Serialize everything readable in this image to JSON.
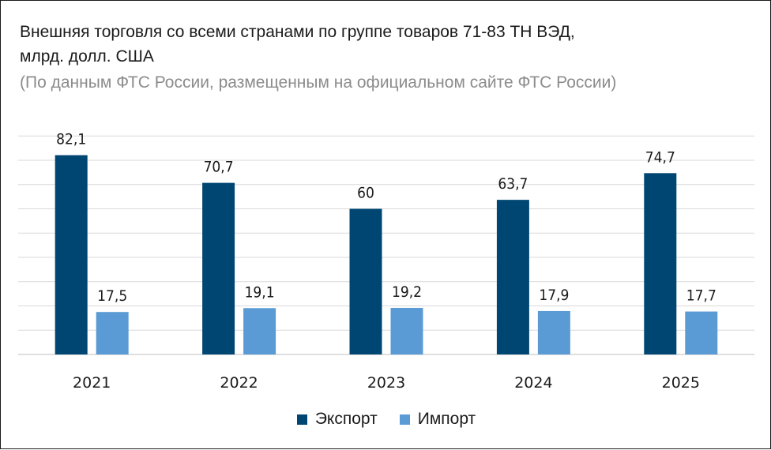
{
  "chart_data": {
    "type": "bar",
    "title": "Внешняя торговля со всеми странами по группе товаров 71-83 ТН ВЭД, млрд. долл. США",
    "subtitle": "(По данным ФТС России, размещенным на официальном сайте ФТС России)",
    "categories": [
      "2021",
      "2022",
      "2023",
      "2024",
      "2025"
    ],
    "series": [
      {
        "name": "Экспорт",
        "color": "#004672",
        "values": [
          82.1,
          70.7,
          60,
          63.7,
          74.7
        ],
        "labels": [
          "82,1",
          "70,7",
          "60",
          "63,7",
          "74,7"
        ]
      },
      {
        "name": "Импорт",
        "color": "#5b9bd5",
        "values": [
          17.5,
          19.1,
          19.2,
          17.9,
          17.7
        ],
        "labels": [
          "17,5",
          "19,1",
          "19,2",
          "17,9",
          "17,7"
        ]
      }
    ],
    "xlabel": "",
    "ylabel": "",
    "ylim": [
      0,
      90
    ],
    "grid": true,
    "legend_position": "bottom"
  }
}
